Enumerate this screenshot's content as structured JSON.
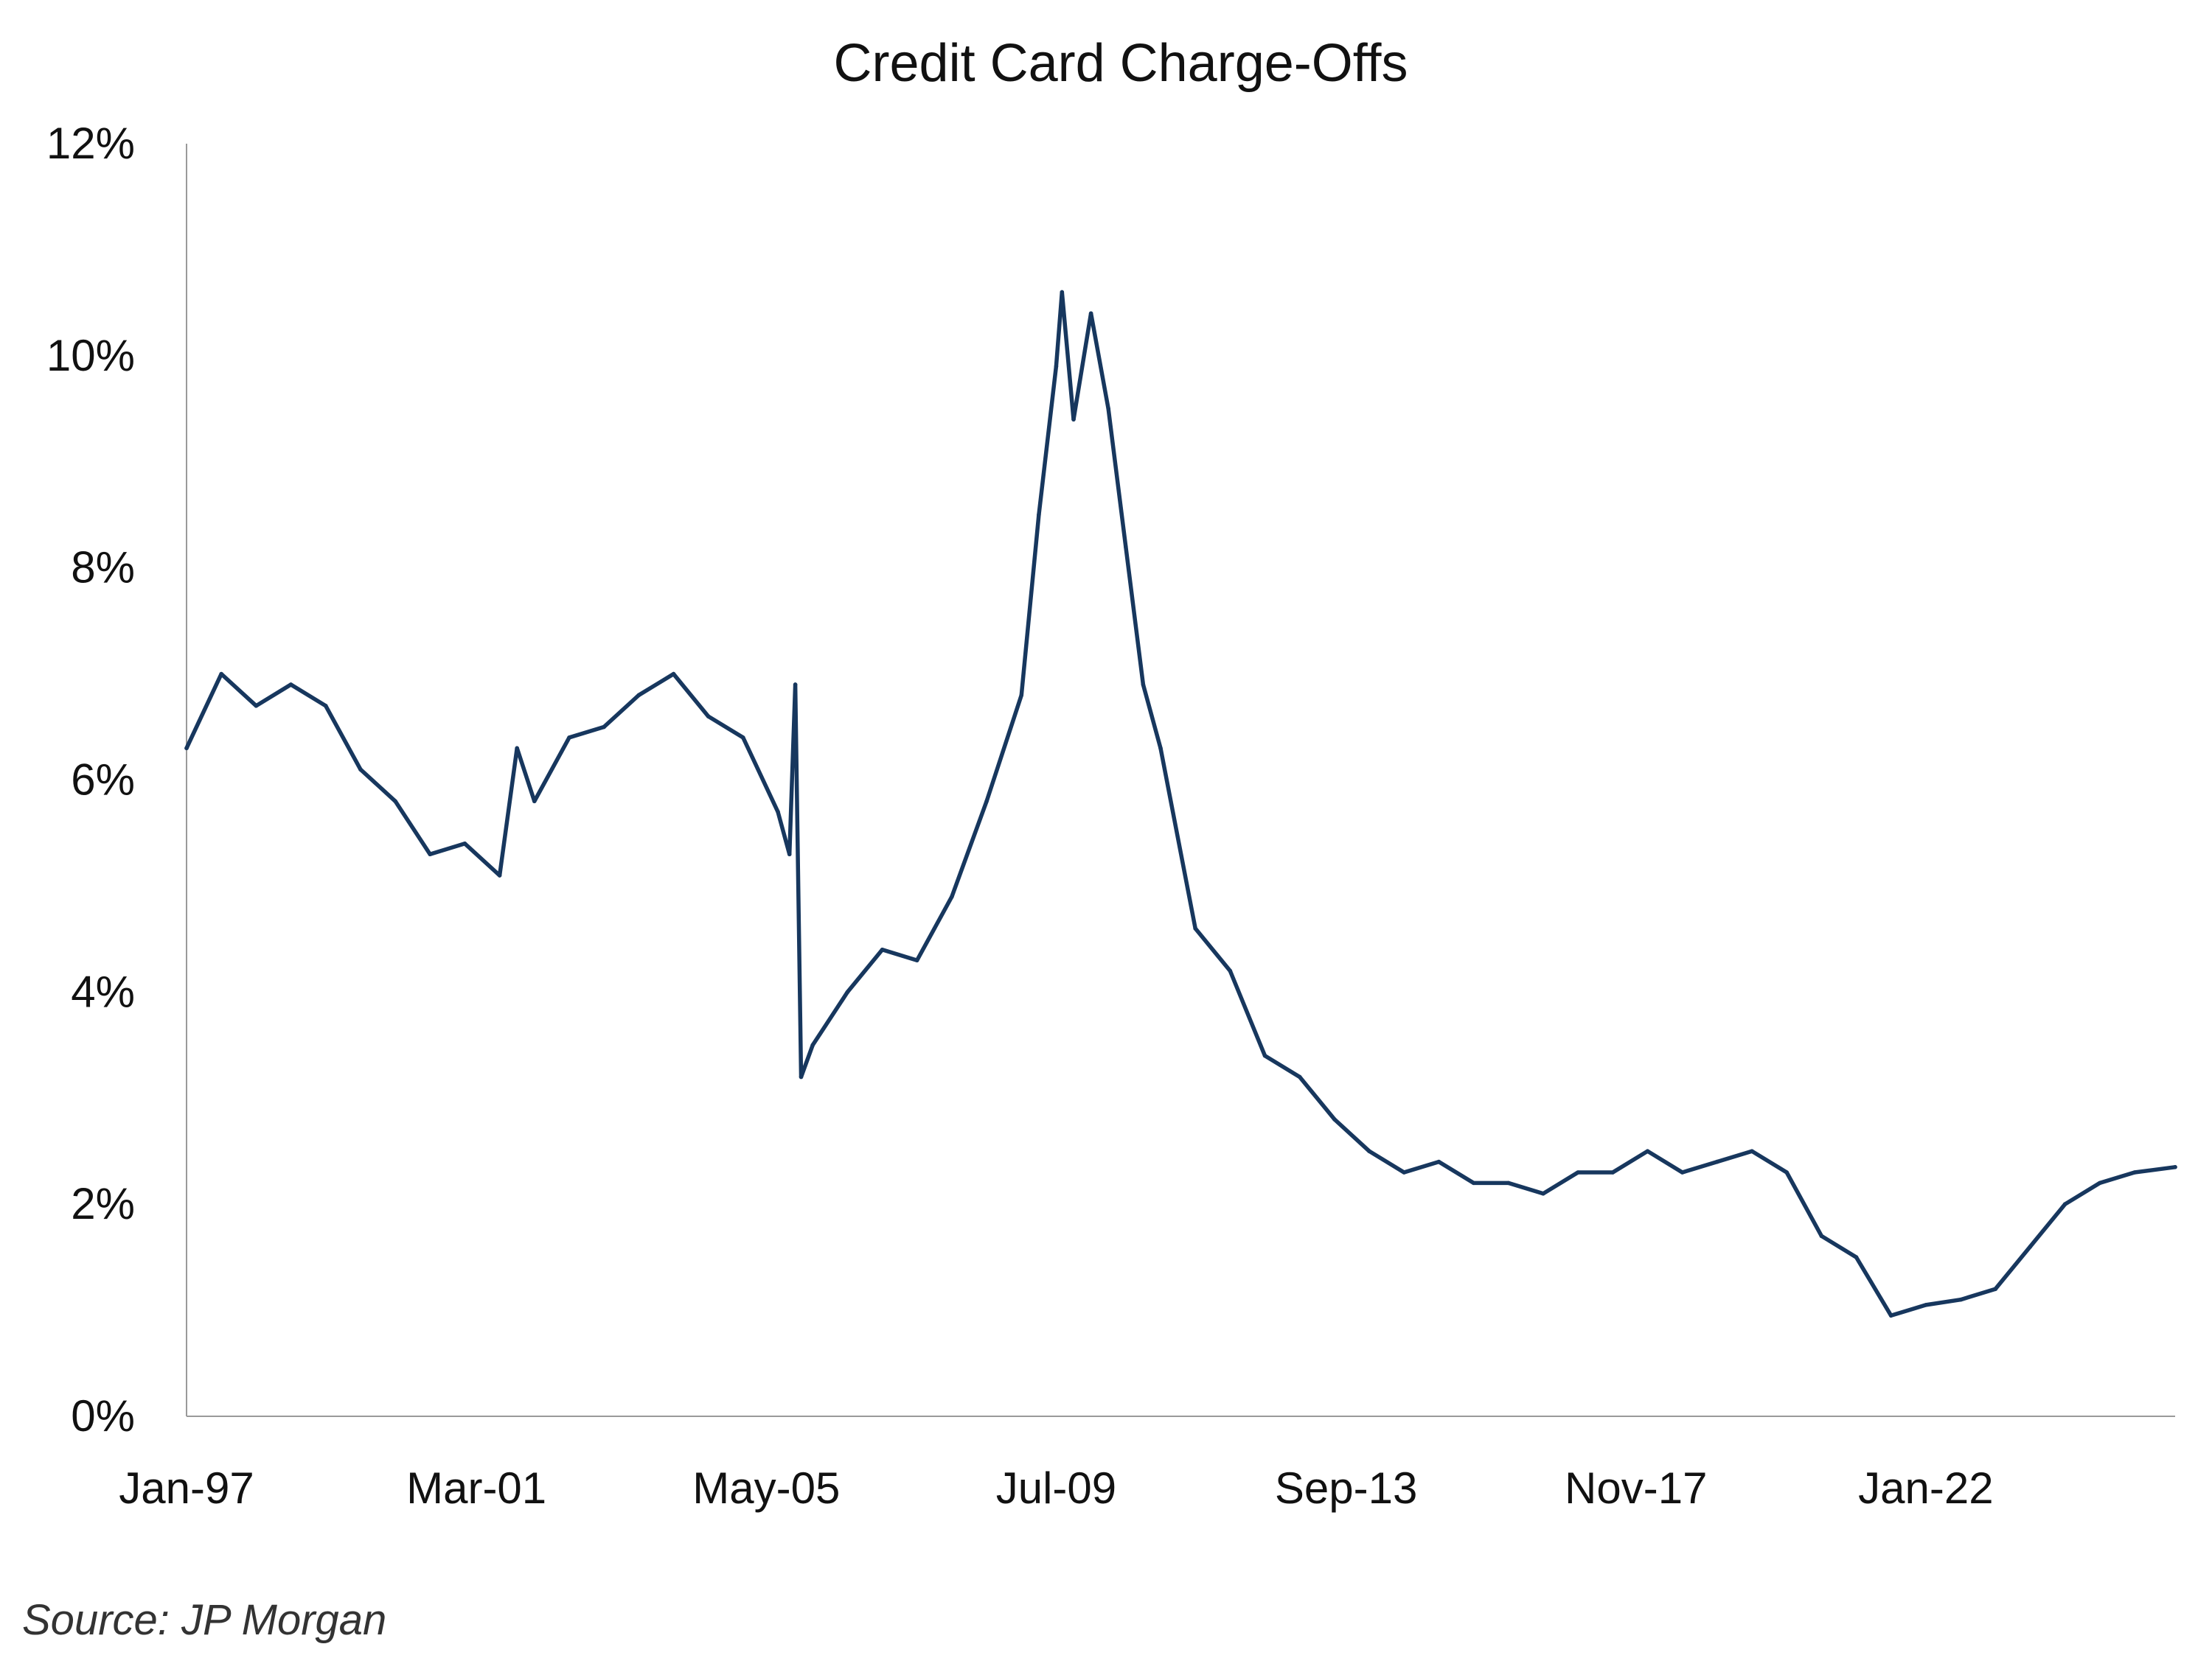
{
  "chart_data": {
    "type": "line",
    "title": "Credit Card Charge-Offs",
    "xlabel": "",
    "ylabel": "",
    "x_tick_labels": [
      "Jan-97",
      "Mar-01",
      "May-05",
      "Jul-09",
      "Sep-13",
      "Nov-17",
      "Jan-22"
    ],
    "y_tick_labels": [
      "0%",
      "2%",
      "4%",
      "6%",
      "8%",
      "10%",
      "12%"
    ],
    "ylim": [
      0,
      12
    ],
    "x_range": [
      "Jan-97",
      "Aug-25"
    ],
    "grid": false,
    "legend": "none",
    "series_color": "#17375e",
    "series": [
      {
        "name": "",
        "x": [
          "Jan-97",
          "Jul-97",
          "Jan-98",
          "Jul-98",
          "Jan-99",
          "Jul-99",
          "Jan-00",
          "Jul-00",
          "Jan-01",
          "Jul-01",
          "Oct-01",
          "Jan-02",
          "Jul-02",
          "Jan-03",
          "Jul-03",
          "Jan-04",
          "Jul-04",
          "Jan-05",
          "Jul-05",
          "Sep-05",
          "Oct-05",
          "Nov-05",
          "Jan-06",
          "Jul-06",
          "Jan-07",
          "Jul-07",
          "Jan-08",
          "Jul-08",
          "Jan-09",
          "Apr-09",
          "Jul-09",
          "Aug-09",
          "Oct-09",
          "Jan-10",
          "Apr-10",
          "Jul-10",
          "Oct-10",
          "Jan-11",
          "Jul-11",
          "Jan-12",
          "Jul-12",
          "Jan-13",
          "Jul-13",
          "Jan-14",
          "Jul-14",
          "Jan-15",
          "Jul-15",
          "Jan-16",
          "Jul-16",
          "Jan-17",
          "Jul-17",
          "Jan-18",
          "Jul-18",
          "Jan-19",
          "Jul-19",
          "Jan-20",
          "Jul-20",
          "Jan-21",
          "Jul-21",
          "Jan-22",
          "Jul-22",
          "Jan-23",
          "Jul-23",
          "Jan-24",
          "Jul-24",
          "Jan-25",
          "Aug-25"
        ],
        "values": [
          6.3,
          7.0,
          6.7,
          6.9,
          6.7,
          6.1,
          5.8,
          5.3,
          5.4,
          5.1,
          6.3,
          5.8,
          6.4,
          6.5,
          6.8,
          7.0,
          6.6,
          6.4,
          5.7,
          5.3,
          6.9,
          3.2,
          3.5,
          4.0,
          4.4,
          4.3,
          4.9,
          5.8,
          6.8,
          8.5,
          9.9,
          10.6,
          9.4,
          10.4,
          9.5,
          8.2,
          6.9,
          6.3,
          4.6,
          4.2,
          3.4,
          3.2,
          2.8,
          2.5,
          2.3,
          2.4,
          2.2,
          2.2,
          2.1,
          2.3,
          2.3,
          2.5,
          2.3,
          2.4,
          2.5,
          2.3,
          1.7,
          1.5,
          0.95,
          1.05,
          1.1,
          1.2,
          1.6,
          2.0,
          2.2,
          2.3,
          2.35
        ]
      }
    ]
  },
  "source_note": "Source: JP Morgan"
}
